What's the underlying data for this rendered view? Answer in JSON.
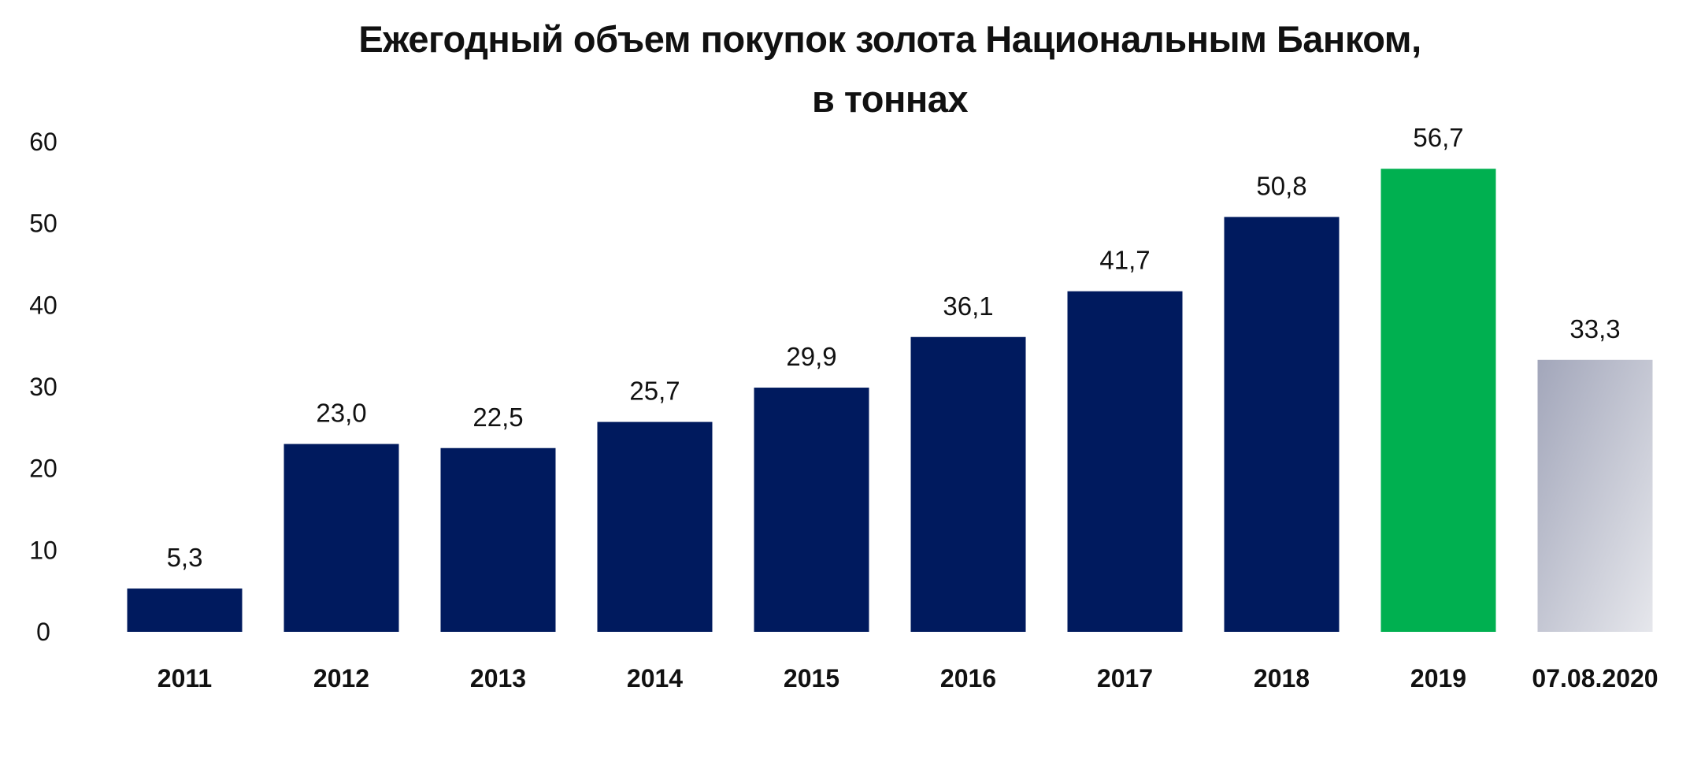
{
  "chart_data": {
    "type": "bar",
    "title": "Ежегодный объем покупок золота Национальным Банком,",
    "subtitle": "в тоннах",
    "xlabel": "",
    "ylabel": "",
    "categories": [
      "2011",
      "2012",
      "2013",
      "2014",
      "2015",
      "2016",
      "2017",
      "2018",
      "2019",
      "07.08.2020"
    ],
    "values": [
      5.3,
      23.0,
      22.5,
      25.7,
      29.9,
      36.1,
      41.7,
      50.8,
      56.7,
      33.3
    ],
    "value_labels": [
      "5,3",
      "23,0",
      "22,5",
      "25,7",
      "29,9",
      "36,1",
      "41,7",
      "50,8",
      "56,7",
      "33,3"
    ],
    "ylim": [
      0,
      60
    ],
    "yticks": [
      "0",
      "10",
      "20",
      "30",
      "40",
      "50",
      "60"
    ],
    "grid": false,
    "legend": "none",
    "colors": {
      "default": "#001A5E",
      "highlight": "#00B050",
      "partial_start": "#A2A6BA",
      "partial_end": "#E6E7EC"
    },
    "bar_colors": [
      "default",
      "default",
      "default",
      "default",
      "default",
      "default",
      "default",
      "default",
      "highlight",
      "partial"
    ]
  }
}
